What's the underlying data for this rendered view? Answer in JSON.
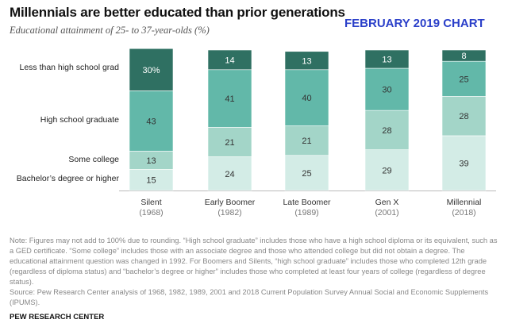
{
  "title": "Millennials are better educated than prior generations",
  "subtitle": "Educational attainment of 25- to 37-year-olds (%)",
  "stamp": "FEBRUARY 2019 CHART",
  "chart_data": {
    "type": "bar",
    "stacked": true,
    "orientation": "vertical",
    "categories": [
      "Silent",
      "Early Boomer",
      "Late Boomer",
      "Gen X",
      "Millennial"
    ],
    "category_years": [
      "(1968)",
      "(1982)",
      "(1989)",
      "(2001)",
      "(2018)"
    ],
    "series": [
      {
        "name": "Bachelor’s degree or higher",
        "values": [
          15,
          24,
          25,
          29,
          39
        ],
        "color": "#d3ece6"
      },
      {
        "name": "Some college",
        "values": [
          13,
          21,
          21,
          28,
          28
        ],
        "color": "#a3d5c8"
      },
      {
        "name": "High school graduate",
        "values": [
          43,
          41,
          40,
          30,
          25
        ],
        "color": "#62b8a9"
      },
      {
        "name": "Less than high school grad",
        "values": [
          30,
          14,
          13,
          13,
          8
        ],
        "color": "#2f7062"
      }
    ],
    "first_label_suffix": "%",
    "ylim": [
      0,
      100
    ],
    "grid": false,
    "legend": "left"
  },
  "note": "Note: Figures may not add to 100% due to rounding. “High school graduate” includes those who have a high school diploma or its equivalent, such as a GED certificate. “Some college” includes those with an associate degree and those who attended college but did not obtain a degree. The educational attainment question was changed in 1992. For Boomers and Silents, “high school graduate” includes those who completed 12th grade (regardless of diploma status) and “bachelor’s degree or higher” includes those who completed at least four years of college (regardless of degree status).",
  "source": "Source: Pew Research Center analysis of 1968, 1982, 1989, 2001 and 2018 Current Population Survey Annual Social and Economic Supplements (IPUMS).",
  "brand": "PEW RESEARCH CENTER"
}
